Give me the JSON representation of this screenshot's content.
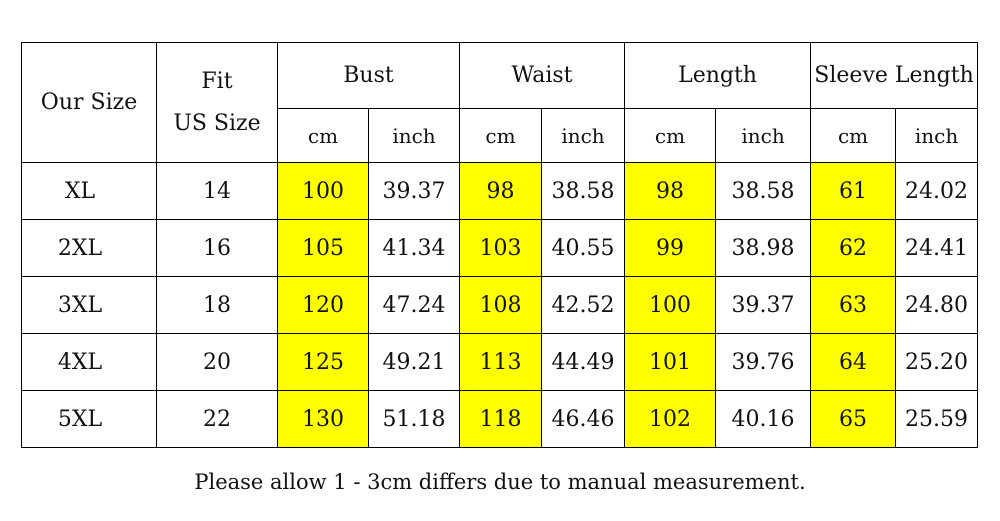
{
  "table": {
    "header": {
      "our_size": "Our Size",
      "fit_line1": "Fit",
      "fit_line2": "US Size",
      "groups": [
        {
          "label": "Bust",
          "unit1": "cm",
          "unit2": "inch"
        },
        {
          "label": "Waist",
          "unit1": "cm",
          "unit2": "inch"
        },
        {
          "label": "Length",
          "unit1": "cm",
          "unit2": "inch"
        },
        {
          "label": "Sleeve Length",
          "unit1": "cm",
          "unit2": "inch"
        }
      ]
    },
    "rows": [
      {
        "size": "XL",
        "us": "14",
        "bust_cm": "100",
        "bust_in": "39.37",
        "waist_cm": "98",
        "waist_in": "38.58",
        "length_cm": "98",
        "length_in": "38.58",
        "sleeve_cm": "61",
        "sleeve_in": "24.02"
      },
      {
        "size": "2XL",
        "us": "16",
        "bust_cm": "105",
        "bust_in": "41.34",
        "waist_cm": "103",
        "waist_in": "40.55",
        "length_cm": "99",
        "length_in": "38.98",
        "sleeve_cm": "62",
        "sleeve_in": "24.41"
      },
      {
        "size": "3XL",
        "us": "18",
        "bust_cm": "120",
        "bust_in": "47.24",
        "waist_cm": "108",
        "waist_in": "42.52",
        "length_cm": "100",
        "length_in": "39.37",
        "sleeve_cm": "63",
        "sleeve_in": "24.80"
      },
      {
        "size": "4XL",
        "us": "20",
        "bust_cm": "125",
        "bust_in": "49.21",
        "waist_cm": "113",
        "waist_in": "44.49",
        "length_cm": "101",
        "length_in": "39.76",
        "sleeve_cm": "64",
        "sleeve_in": "25.20"
      },
      {
        "size": "5XL",
        "us": "22",
        "bust_cm": "130",
        "bust_in": "51.18",
        "waist_cm": "118",
        "waist_in": "46.46",
        "length_cm": "102",
        "length_in": "40.16",
        "sleeve_cm": "65",
        "sleeve_in": "25.59"
      }
    ]
  },
  "highlight_color": "#ffff00",
  "note": "Please allow 1 - 3cm differs due to manual measurement."
}
